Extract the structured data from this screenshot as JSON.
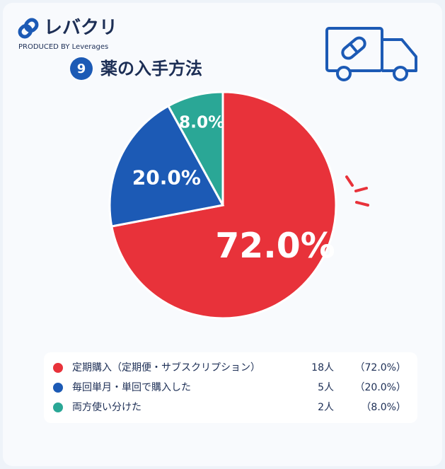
{
  "brand": {
    "name": "レバクリ",
    "tagline": "PRODUCED BY Leverages"
  },
  "chart_data": {
    "type": "pie",
    "number": "9",
    "title": "薬の入手方法",
    "categories": [
      "定期購入（定期便・サブスクリプション）",
      "毎回単月・単回で購入した",
      "両方使い分けた"
    ],
    "values": [
      72,
      20,
      8
    ],
    "value_labels": [
      "72.0%",
      "20.0%",
      "8.0%"
    ],
    "colors": [
      "#e8323a",
      "#1c5ab5",
      "#2aa796"
    ],
    "count_labels": [
      "18人",
      "5人",
      "2人"
    ],
    "legend_value_labels": [
      "（72.0%）",
      "（20.0%）",
      "（8.0%）"
    ]
  }
}
